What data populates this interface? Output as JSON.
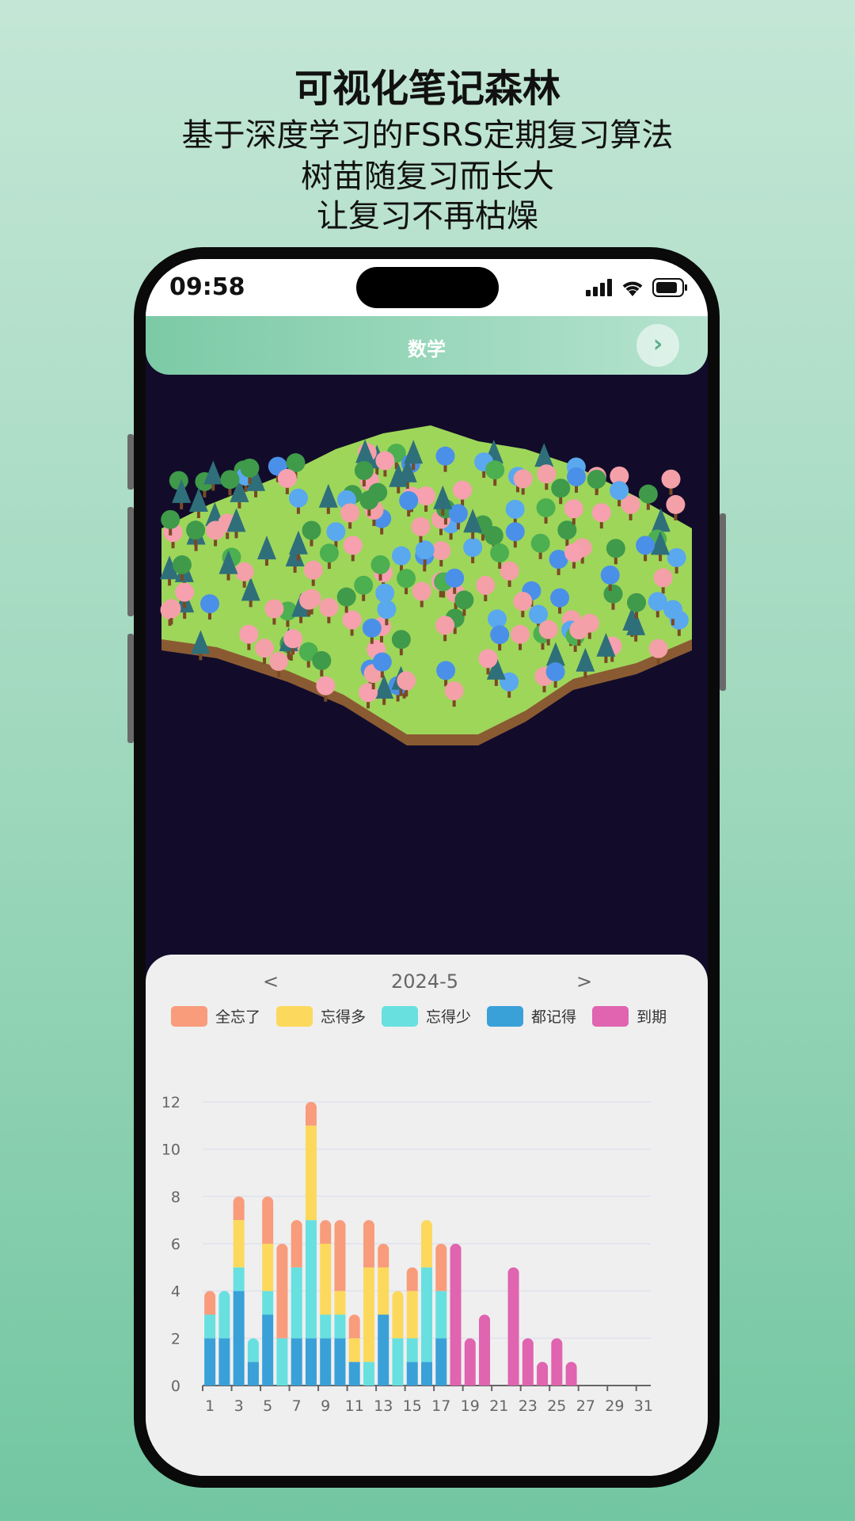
{
  "hero": {
    "title": "可视化笔记森林",
    "line1": "基于深度学习的FSRS定期复习算法",
    "line2": "树苗随复习而长大",
    "line3": "让复习不再枯燥"
  },
  "status": {
    "time": "09:58"
  },
  "header": {
    "title": "数学",
    "next_icon": "chevron-right-icon"
  },
  "panel": {
    "prev": "<",
    "month": "2024-5",
    "next": ">"
  },
  "colors": {
    "全忘了": "#f89c7c",
    "忘得多": "#fcd95c",
    "忘得少": "#68e0e0",
    "都记得": "#3aa0d8",
    "到期": "#e064b0"
  },
  "chart_data": {
    "type": "bar",
    "stacked": true,
    "ylim": [
      0,
      12
    ],
    "yticks": [
      0,
      2,
      4,
      6,
      8,
      10,
      12
    ],
    "grid": true,
    "legend": "top",
    "categories": [
      1,
      2,
      3,
      4,
      5,
      6,
      7,
      8,
      9,
      10,
      11,
      12,
      13,
      14,
      15,
      16,
      17,
      18,
      19,
      20,
      21,
      22,
      23,
      24,
      25,
      26,
      27,
      28,
      29,
      30,
      31
    ],
    "xtick_labels": [
      "1",
      "3",
      "5",
      "7",
      "9",
      "11",
      "13",
      "15",
      "17",
      "19",
      "21",
      "23",
      "25",
      "27",
      "29",
      "31"
    ],
    "series": [
      {
        "name": "都记得",
        "color": "#3aa0d8",
        "values": [
          2,
          2,
          4,
          1,
          3,
          0,
          2,
          2,
          2,
          2,
          1,
          0,
          3,
          0,
          1,
          1,
          2,
          0,
          0,
          0,
          0,
          0,
          0,
          0,
          0,
          0,
          0,
          0,
          0,
          0,
          0
        ]
      },
      {
        "name": "忘得少",
        "color": "#68e0e0",
        "values": [
          1,
          2,
          1,
          1,
          1,
          2,
          3,
          5,
          1,
          1,
          0,
          1,
          0,
          2,
          1,
          4,
          2,
          0,
          0,
          0,
          0,
          0,
          0,
          0,
          0,
          0,
          0,
          0,
          0,
          0,
          0
        ]
      },
      {
        "name": "忘得多",
        "color": "#fcd95c",
        "values": [
          0,
          0,
          2,
          0,
          2,
          0,
          0,
          4,
          3,
          1,
          1,
          4,
          2,
          2,
          2,
          2,
          0,
          0,
          0,
          0,
          0,
          0,
          0,
          0,
          0,
          0,
          0,
          0,
          0,
          0,
          0
        ]
      },
      {
        "name": "全忘了",
        "color": "#f89c7c",
        "values": [
          1,
          0,
          1,
          0,
          2,
          4,
          2,
          1,
          1,
          3,
          1,
          2,
          1,
          0,
          1,
          0,
          2,
          0,
          0,
          0,
          0,
          0,
          0,
          0,
          0,
          0,
          0,
          0,
          0,
          0,
          0
        ]
      },
      {
        "name": "到期",
        "color": "#e064b0",
        "values": [
          0,
          0,
          0,
          0,
          0,
          0,
          0,
          0,
          0,
          0,
          0,
          0,
          0,
          0,
          0,
          0,
          0,
          6,
          2,
          3,
          0,
          5,
          2,
          1,
          2,
          1,
          0,
          0,
          0,
          0,
          0
        ]
      }
    ]
  }
}
